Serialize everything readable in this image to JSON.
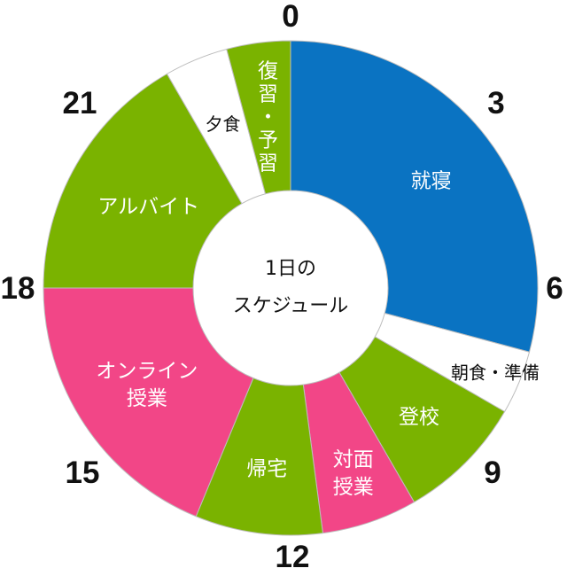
{
  "chart_data": {
    "type": "pie",
    "title": "",
    "center_label": [
      "1日の",
      "スケジュール"
    ],
    "slices": [
      {
        "label": "就寝",
        "start": 0,
        "end": 7,
        "color": "#0a73c2",
        "text_color": "#ffffff"
      },
      {
        "label": "朝食・準備",
        "start": 7,
        "end": 8,
        "color": "#ffffff",
        "text_color": "#111111"
      },
      {
        "label": "登校",
        "start": 8,
        "end": 10,
        "color": "#7ab300",
        "text_color": "#ffffff"
      },
      {
        "label": "対面授業",
        "start": 10,
        "end": 11.5,
        "color": "#f24687",
        "text_color": "#ffffff"
      },
      {
        "label": "帰宅",
        "start": 11.5,
        "end": 13.5,
        "color": "#7ab300",
        "text_color": "#ffffff"
      },
      {
        "label": "オンライン授業",
        "start": 13.5,
        "end": 18,
        "color": "#f24687",
        "text_color": "#ffffff"
      },
      {
        "label": "アルバイト",
        "start": 18,
        "end": 22,
        "color": "#7ab300",
        "text_color": "#ffffff"
      },
      {
        "label": "夕食",
        "start": 22,
        "end": 23,
        "color": "#ffffff",
        "text_color": "#111111"
      },
      {
        "label": "復習・予習",
        "start": 23,
        "end": 24,
        "color": "#7ab300",
        "text_color": "#ffffff"
      }
    ],
    "hour_ticks": [
      {
        "label": "0",
        "hour": 0
      },
      {
        "label": "3",
        "hour": 3
      },
      {
        "label": "6",
        "hour": 6
      },
      {
        "label": "9",
        "hour": 9
      },
      {
        "label": "12",
        "hour": 12
      },
      {
        "label": "15",
        "hour": 15
      },
      {
        "label": "18",
        "hour": 18
      },
      {
        "label": "21",
        "hour": 21
      }
    ]
  }
}
